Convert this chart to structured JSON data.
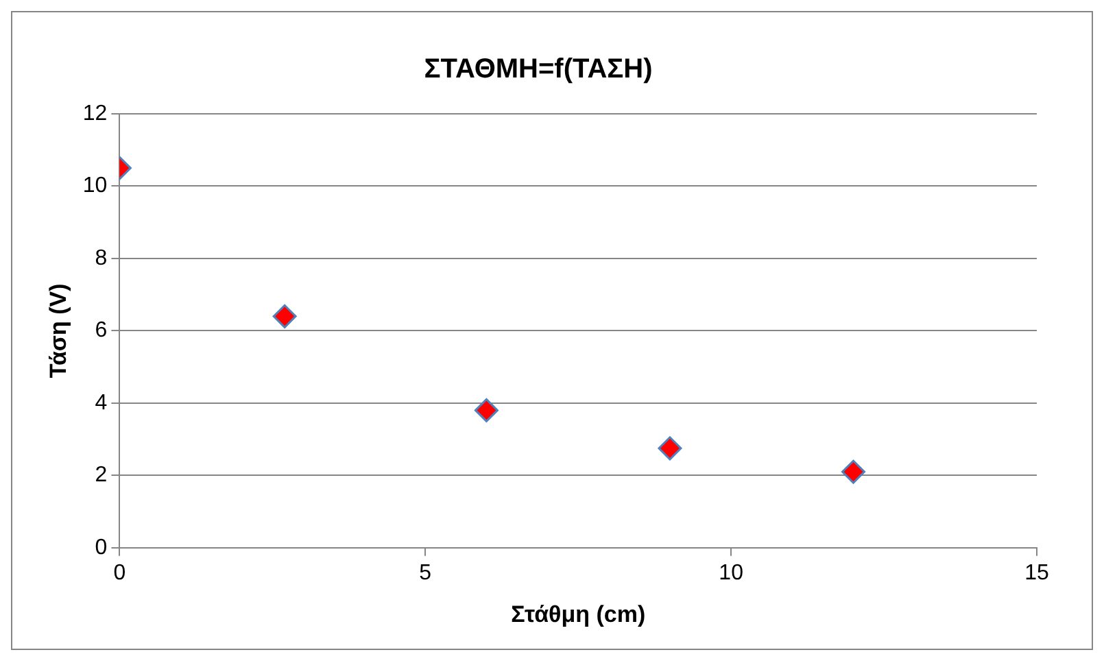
{
  "chart_data": {
    "type": "scatter",
    "title": "ΣΤΑΘΜΗ=f(ΤΑΣΗ)",
    "xlabel": "Στάθμη (cm)",
    "ylabel": "Τάση (V)",
    "x": [
      0,
      2.7,
      6,
      9,
      12
    ],
    "series": [
      {
        "color": "#ff0000",
        "values": [
          10.5,
          6.4,
          3.8,
          2.75,
          2.1
        ]
      }
    ],
    "xlim": [
      0,
      15
    ],
    "xticks": [
      0,
      5,
      10,
      15
    ],
    "ylim": [
      0,
      12
    ],
    "yticks": [
      0,
      2,
      4,
      6,
      8,
      10,
      12
    ],
    "grid": "y",
    "legend": false,
    "marker": "diamond"
  }
}
